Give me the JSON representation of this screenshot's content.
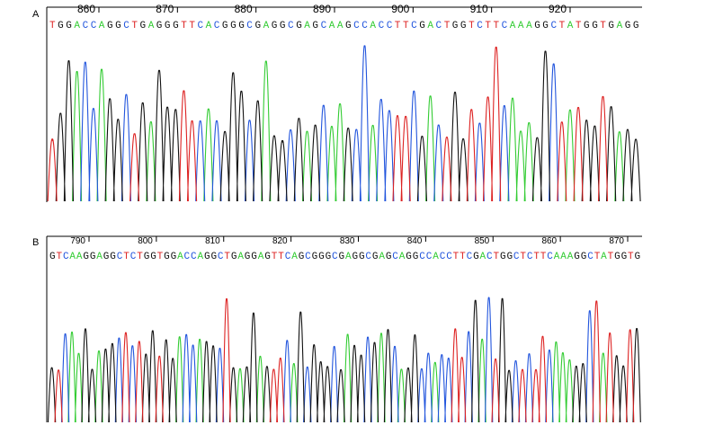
{
  "panels": [
    {
      "label": "A",
      "sequence": "TGGACCAGGCTGAGGGTTCACGGGCGAGGCGAGCAAGCCACCTTCGACTGGTCTTCAAAGGCTATGGTGAGG",
      "position_labels": [
        "860",
        "870",
        "880",
        "890",
        "900",
        "910",
        "920"
      ]
    },
    {
      "label": "B",
      "sequence": "GTCAAGGAGGCTCTGGTGGACCAGGCTGAGGAGTTCAGCGGGCGAGGCGAGCAGGCCACCTTCGACTGGCTCTTCAAAGGCTATGGTG",
      "position_labels": [
        "790",
        "800",
        "810",
        "820",
        "830",
        "840",
        "850",
        "860",
        "870"
      ]
    }
  ],
  "base_colors": {
    "A": "#33cc33",
    "C": "#2255dd",
    "G": "#111111",
    "T": "#dd2222"
  }
}
